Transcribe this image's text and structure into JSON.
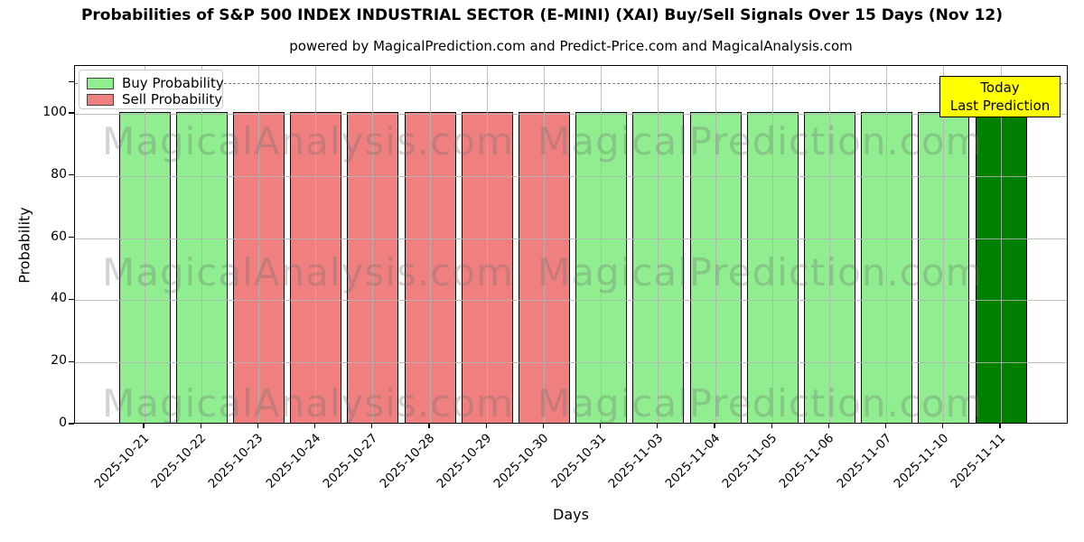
{
  "title": "Probabilities of S&P 500 INDEX INDUSTRIAL SECTOR (E-MINI) (XAI) Buy/Sell Signals Over 15 Days (Nov 12)",
  "subtitle": "powered by MagicalPrediction.com and Predict-Price.com and MagicalAnalysis.com",
  "legend": [
    {
      "label": "Buy Probability",
      "color": "#90ee90"
    },
    {
      "label": "Sell Probability",
      "color": "#f08080"
    }
  ],
  "annotation": {
    "line1": "Today",
    "line2": "Last Prediction",
    "bg": "#ffff00"
  },
  "watermarks": {
    "left": "MagicalAnalysis.com",
    "right": "MagicalPrediction.com"
  },
  "colors": {
    "buy": "#90ee90",
    "sell": "#f08080",
    "today": "#008000",
    "grid": "#b4b4b4",
    "dashed": "#7f7f7f",
    "annotation_bg": "#ffff00"
  },
  "chart_data": {
    "type": "bar",
    "title": "Probabilities of S&P 500 INDEX INDUSTRIAL SECTOR (E-MINI) (XAI) Buy/Sell Signals Over 15 Days (Nov 12)",
    "subtitle": "powered by MagicalPrediction.com and Predict-Price.com and MagicalAnalysis.com",
    "xlabel": "Days",
    "ylabel": "Probability",
    "ylim": [
      0,
      115.5
    ],
    "yticks": [
      0,
      20,
      40,
      60,
      80,
      100
    ],
    "dashed_line_y": 110,
    "grid": true,
    "legend_position": "upper left",
    "categories": [
      "2025-10-21",
      "2025-10-22",
      "2025-10-23",
      "2025-10-24",
      "2025-10-27",
      "2025-10-28",
      "2025-10-29",
      "2025-10-30",
      "2025-10-31",
      "2025-11-03",
      "2025-11-04",
      "2025-11-05",
      "2025-11-06",
      "2025-11-07",
      "2025-11-10",
      "2025-11-11"
    ],
    "series": [
      {
        "name": "Buy Probability",
        "values": [
          100,
          100,
          0,
          0,
          0,
          0,
          0,
          0,
          100,
          100,
          100,
          100,
          100,
          100,
          100,
          100
        ]
      },
      {
        "name": "Sell Probability",
        "values": [
          0,
          0,
          100,
          100,
          100,
          100,
          100,
          100,
          0,
          0,
          0,
          0,
          0,
          0,
          0,
          0
        ]
      }
    ],
    "bar_signals": [
      "buy",
      "buy",
      "sell",
      "sell",
      "sell",
      "sell",
      "sell",
      "sell",
      "buy",
      "buy",
      "buy",
      "buy",
      "buy",
      "buy",
      "buy",
      "today"
    ],
    "bar_values": [
      100,
      100,
      100,
      100,
      100,
      100,
      100,
      100,
      100,
      100,
      100,
      100,
      100,
      100,
      100,
      100
    ]
  }
}
